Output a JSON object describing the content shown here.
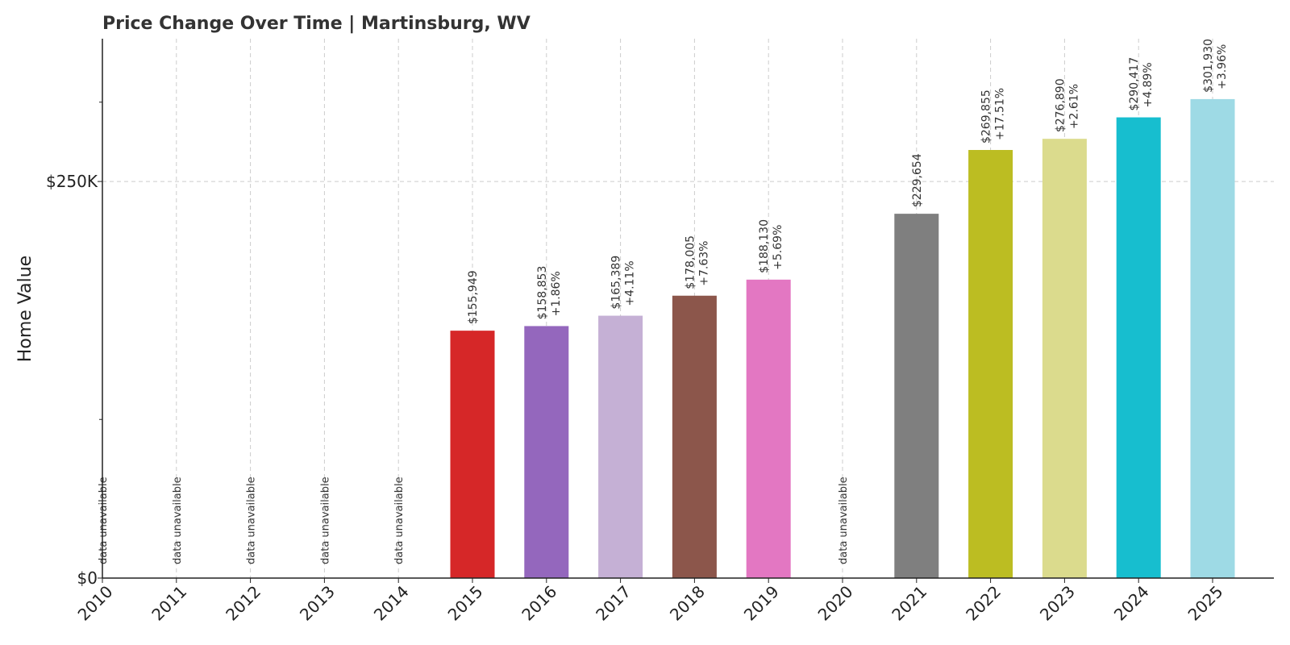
{
  "chart_data": {
    "type": "bar",
    "title": "Price Change Over Time | Martinsburg, WV",
    "xlabel": "",
    "ylabel": "Home Value",
    "ylim": [
      0,
      340000
    ],
    "yticks": [
      {
        "value": 0,
        "label": "$0"
      },
      {
        "value": 250000,
        "label": "$250K"
      }
    ],
    "yticks_unlabeled": [
      100000,
      300000
    ],
    "grid": true,
    "categories": [
      "2010",
      "2011",
      "2012",
      "2013",
      "2014",
      "2015",
      "2016",
      "2017",
      "2018",
      "2019",
      "2020",
      "2021",
      "2022",
      "2023",
      "2024",
      "2025"
    ],
    "values": [
      null,
      null,
      null,
      null,
      null,
      155949,
      158853,
      165389,
      178005,
      188130,
      null,
      229654,
      269855,
      276890,
      290417,
      301930
    ],
    "value_labels": [
      "",
      "",
      "",
      "",
      "",
      "$155,949",
      "$158,853",
      "$165,389",
      "$178,005",
      "$188,130",
      "",
      "$229,654",
      "$269,855",
      "$276,890",
      "$290,417",
      "$301,930"
    ],
    "change_labels": [
      "",
      "",
      "",
      "",
      "",
      "",
      "+1.86%",
      "+4.11%",
      "+7.63%",
      "+5.69%",
      "",
      "",
      "+17.51%",
      "+2.61%",
      "+4.89%",
      "+3.96%"
    ],
    "unavailable_label": "data unavailable",
    "colors": [
      "#1f77b4",
      "#ff7f0e",
      "#2ca02c",
      "#17a2b8",
      "#9edae5",
      "#d62728",
      "#9467bd",
      "#c5b0d5",
      "#8c564b",
      "#e377c2",
      "#f7b6d2",
      "#7f7f7f",
      "#bcbd22",
      "#dbdb8d",
      "#17becf",
      "#9edae5"
    ]
  }
}
